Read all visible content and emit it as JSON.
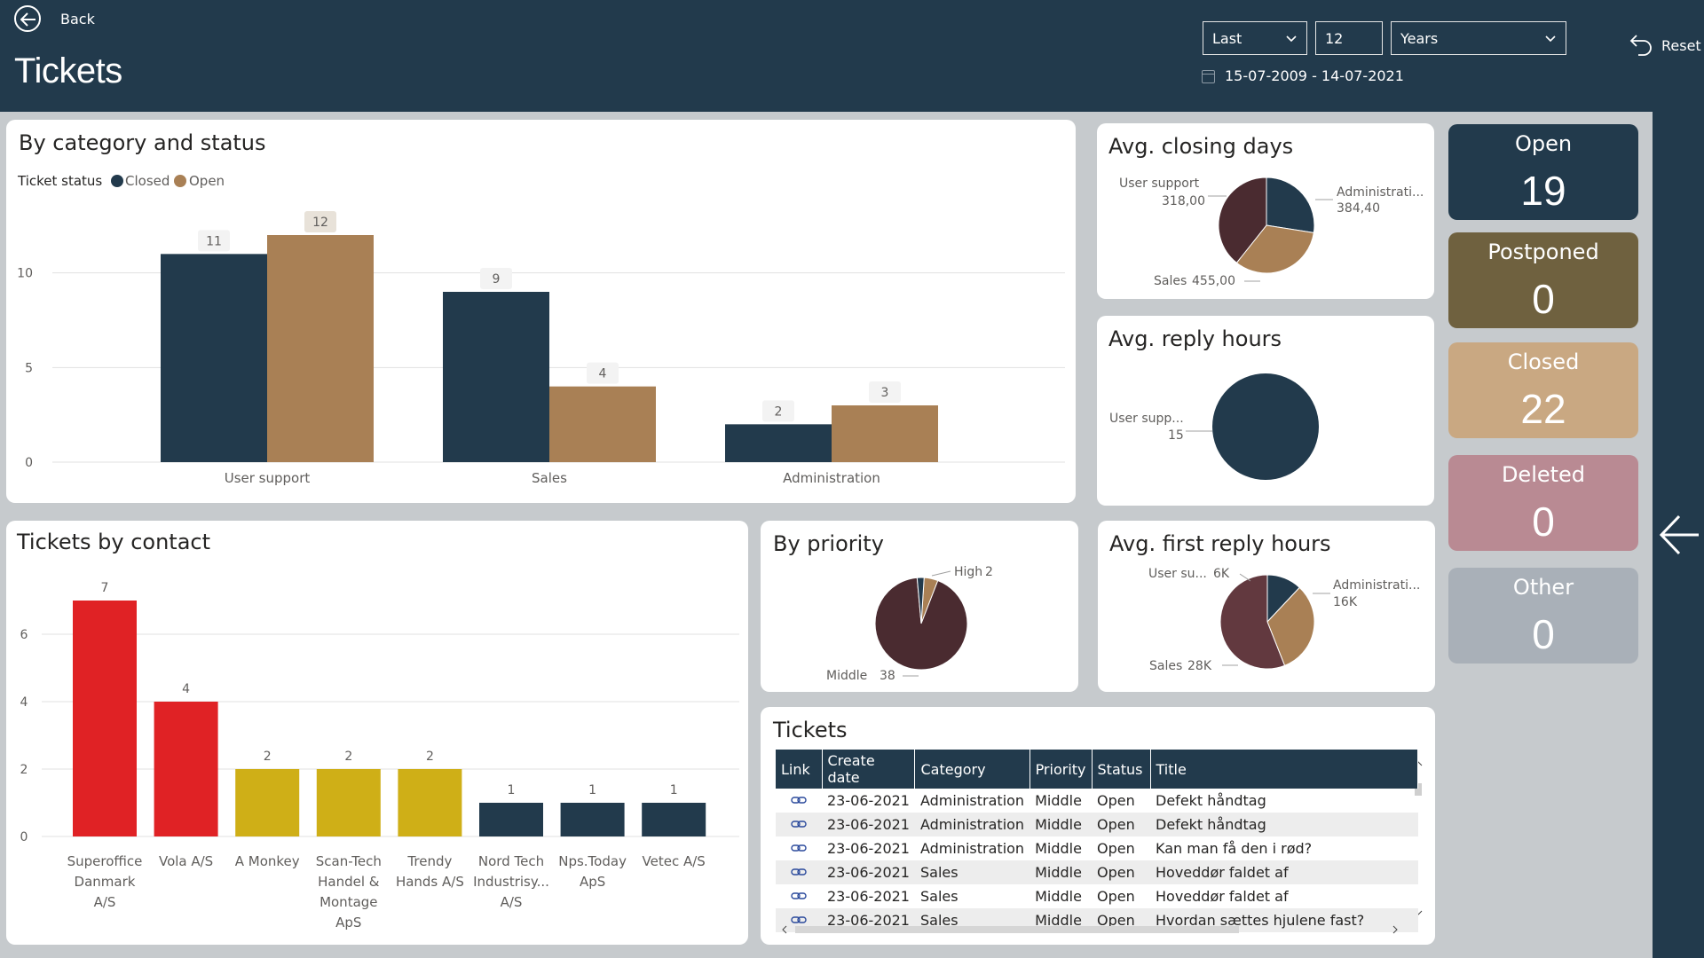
{
  "header": {
    "back_label": "Back",
    "title": "Tickets",
    "period_mode": "Last",
    "period_count": "12",
    "period_unit": "Years",
    "date_range": "15-07-2009 - 14-07-2021",
    "reset_label": "Reset"
  },
  "status_tiles": [
    {
      "label": "Open",
      "value": "19",
      "bg": "#223a4c",
      "fg": "#ffffff"
    },
    {
      "label": "Postponed",
      "value": "0",
      "bg": "#6f613f",
      "fg": "#ffffff"
    },
    {
      "label": "Closed",
      "value": "22",
      "bg": "#c9a882",
      "fg": "#ffffff"
    },
    {
      "label": "Deleted",
      "value": "0",
      "bg": "#b98a93",
      "fg": "#ffffff"
    },
    {
      "label": "Other",
      "value": "0",
      "bg": "#a9b0b8",
      "fg": "#ffffff"
    }
  ],
  "colors": {
    "navy": "#223a4c",
    "tan": "#a98055",
    "red": "#e02225",
    "yellow": "#cfaf17",
    "dark_plum": "#4a2b30",
    "plum": "#62393f"
  },
  "chart_data": [
    {
      "id": "by-category",
      "type": "bar",
      "title": "By category and status",
      "legend_title": "Ticket status",
      "legend_position": "top-left",
      "categories": [
        "User support",
        "Sales",
        "Administration"
      ],
      "series": [
        {
          "name": "Closed",
          "values": [
            11,
            9,
            2
          ],
          "color": "#223a4c"
        },
        {
          "name": "Open",
          "values": [
            12,
            4,
            3
          ],
          "color": "#a98055"
        }
      ],
      "yticks": [
        0,
        5,
        10
      ],
      "ylim": [
        0,
        12
      ],
      "grid": true
    },
    {
      "id": "by-contact",
      "type": "bar",
      "title": "Tickets by contact",
      "categories": [
        "Superoffice Danmark A/S",
        "Vola A/S",
        "A Monkey",
        "Scan-Tech Handel & Montage ApS",
        "Trendy Hands A/S",
        "Nord Tech Industrisy... A/S",
        "Nps.Today ApS",
        "Vetec A/S"
      ],
      "values": [
        7,
        4,
        2,
        2,
        2,
        1,
        1,
        1
      ],
      "bar_colors": [
        "#e02225",
        "#e02225",
        "#cfaf17",
        "#cfaf17",
        "#cfaf17",
        "#223a4c",
        "#223a4c",
        "#223a4c"
      ],
      "yticks": [
        0,
        2,
        4,
        6
      ],
      "ylim": [
        0,
        7
      ],
      "grid": true
    },
    {
      "id": "avg-closing-days",
      "type": "pie",
      "title": "Avg. closing days",
      "slices": [
        {
          "label": "User support",
          "value": 318.0,
          "display": "318,00",
          "color": "#223a4c"
        },
        {
          "label": "Administrati...",
          "value": 384.4,
          "display": "384,40",
          "color": "#a98055"
        },
        {
          "label": "Sales",
          "value": 455.0,
          "display": "455,00",
          "color": "#4a2b30"
        }
      ]
    },
    {
      "id": "avg-reply-hours",
      "type": "pie",
      "title": "Avg. reply hours",
      "slices": [
        {
          "label": "User supp...",
          "value": 15,
          "display": "15",
          "color": "#223a4c"
        }
      ]
    },
    {
      "id": "by-priority",
      "type": "pie",
      "title": "By priority",
      "slices": [
        {
          "label": "High",
          "value": 2,
          "display": "2",
          "color": "#a98055"
        },
        {
          "label": "Middle",
          "value": 38,
          "display": "38",
          "color": "#4a2b30"
        },
        {
          "label": "",
          "value": 1,
          "display": "",
          "color": "#223a4c"
        }
      ]
    },
    {
      "id": "avg-first-reply-hours",
      "type": "pie",
      "title": "Avg. first reply hours",
      "slices": [
        {
          "label": "User su...",
          "value": 6,
          "display": "6K",
          "color": "#223a4c"
        },
        {
          "label": "Administrati...",
          "value": 16,
          "display": "16K",
          "color": "#a98055"
        },
        {
          "label": "Sales",
          "value": 28,
          "display": "28K",
          "color": "#62393f"
        }
      ]
    }
  ],
  "tickets_table": {
    "title": "Tickets",
    "columns": [
      "Link",
      "Create date",
      "Category",
      "Priority",
      "Status",
      "Title"
    ],
    "rows": [
      [
        "23-06-2021",
        "Administration",
        "Middle",
        "Open",
        "Defekt håndtag"
      ],
      [
        "23-06-2021",
        "Administration",
        "Middle",
        "Open",
        "Defekt håndtag"
      ],
      [
        "23-06-2021",
        "Administration",
        "Middle",
        "Open",
        "Kan man få den i rød?"
      ],
      [
        "23-06-2021",
        "Sales",
        "Middle",
        "Open",
        "Hoveddør faldet af"
      ],
      [
        "23-06-2021",
        "Sales",
        "Middle",
        "Open",
        "Hoveddør faldet af"
      ],
      [
        "23-06-2021",
        "Sales",
        "Middle",
        "Open",
        "Hvordan sættes hjulene fast?"
      ]
    ]
  }
}
